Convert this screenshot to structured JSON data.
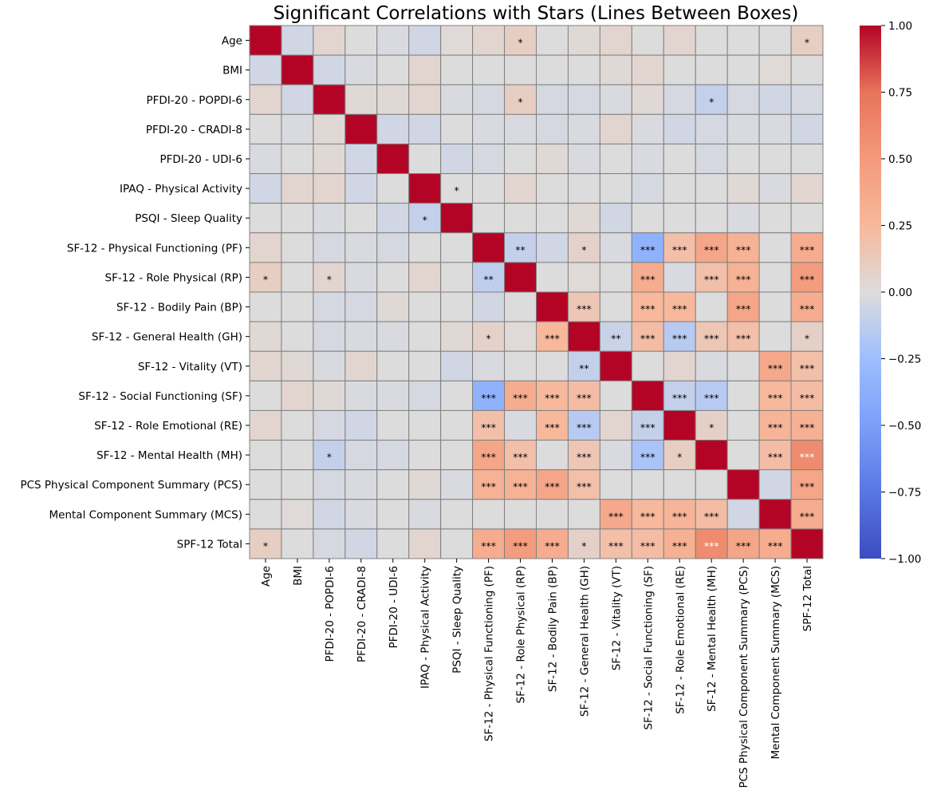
{
  "chart_data": {
    "type": "heatmap",
    "title": "Significant Correlations with Stars (Lines Between Boxes)",
    "labels": [
      "Age",
      "BMI",
      "PFDI-20 - POPDI-6",
      "PFDI-20 - CRADI-8",
      "PFDI-20 - UDI-6",
      "IPAQ - Physical Activity",
      "PSQI - Sleep Quality",
      "SF-12 - Physical Functioning (PF)",
      "SF-12 - Role Physical (RP)",
      "SF-12 - Bodily Pain (BP)",
      "SF-12 - General Health (GH)",
      "SF-12 - Vitality (VT)",
      "SF-12 - Social Functioning (SF)",
      "SF-12 - Role Emotional (RE)",
      "SF-12 - Mental Health (MH)",
      "PCS Physical Component Summary (PCS)",
      "Mental Component Summary (MCS)",
      "SPF-12 Total"
    ],
    "values": [
      [
        1.0,
        -0.05,
        0.05,
        0.0,
        -0.02,
        -0.05,
        0.02,
        0.05,
        0.1,
        0.0,
        0.03,
        0.05,
        0.0,
        0.05,
        0.0,
        0.0,
        0.0,
        0.1
      ],
      [
        -0.05,
        1.0,
        -0.05,
        -0.02,
        0.0,
        0.05,
        0.0,
        0.0,
        0.0,
        0.0,
        0.0,
        0.03,
        0.05,
        0.0,
        0.0,
        0.0,
        0.02,
        0.0
      ],
      [
        0.05,
        -0.05,
        1.0,
        0.03,
        0.03,
        0.05,
        -0.02,
        -0.03,
        0.1,
        -0.03,
        -0.03,
        -0.02,
        0.03,
        -0.03,
        -0.1,
        -0.03,
        -0.05,
        -0.03
      ],
      [
        0.0,
        -0.02,
        0.03,
        1.0,
        -0.05,
        -0.05,
        0.0,
        -0.02,
        -0.02,
        -0.03,
        -0.02,
        0.05,
        -0.02,
        -0.05,
        -0.03,
        -0.02,
        -0.02,
        -0.05
      ],
      [
        -0.02,
        0.0,
        0.03,
        -0.05,
        1.0,
        0.0,
        -0.05,
        -0.03,
        0.0,
        0.03,
        -0.02,
        0.0,
        -0.02,
        0.0,
        -0.03,
        0.0,
        0.0,
        0.0
      ],
      [
        -0.05,
        0.05,
        0.05,
        -0.05,
        0.0,
        1.0,
        0.0,
        0.0,
        0.05,
        0.0,
        0.0,
        0.0,
        -0.03,
        0.0,
        0.0,
        0.03,
        -0.02,
        0.05
      ],
      [
        0.0,
        0.0,
        -0.02,
        0.0,
        -0.05,
        -0.1,
        1.0,
        0.0,
        0.0,
        0.0,
        0.03,
        -0.05,
        0.0,
        0.0,
        0.0,
        -0.02,
        0.0,
        0.0
      ],
      [
        0.05,
        0.0,
        -0.03,
        -0.02,
        -0.03,
        0.0,
        0.0,
        1.0,
        -0.1,
        -0.05,
        0.07,
        -0.02,
        -0.35,
        0.2,
        0.4,
        0.3,
        0.0,
        0.35
      ],
      [
        0.1,
        0.0,
        0.05,
        -0.02,
        0.0,
        0.05,
        0.0,
        -0.12,
        1.0,
        0.0,
        0.02,
        0.0,
        0.35,
        -0.02,
        0.2,
        0.3,
        0.0,
        0.48
      ],
      [
        0.0,
        0.0,
        -0.03,
        -0.03,
        0.03,
        0.0,
        0.0,
        -0.05,
        0.0,
        1.0,
        0.15,
        0.0,
        0.25,
        0.25,
        0.0,
        0.4,
        0.0,
        0.35
      ],
      [
        0.03,
        0.0,
        -0.03,
        -0.02,
        -0.02,
        0.0,
        0.03,
        0.07,
        0.02,
        0.25,
        1.0,
        -0.08,
        0.22,
        -0.15,
        0.15,
        0.2,
        0.0,
        0.08
      ],
      [
        0.05,
        0.03,
        -0.02,
        0.05,
        0.0,
        0.0,
        -0.05,
        -0.02,
        0.0,
        0.0,
        -0.1,
        1.0,
        0.0,
        0.05,
        -0.02,
        0.0,
        0.38,
        0.2
      ],
      [
        0.0,
        0.05,
        0.03,
        -0.02,
        -0.02,
        -0.03,
        0.0,
        -0.35,
        0.35,
        0.25,
        0.22,
        0.0,
        1.0,
        -0.1,
        -0.15,
        0.0,
        0.25,
        0.22
      ],
      [
        0.05,
        0.0,
        -0.03,
        -0.05,
        0.0,
        0.0,
        0.0,
        0.2,
        -0.02,
        0.25,
        -0.15,
        0.05,
        -0.1,
        1.0,
        0.08,
        0.0,
        0.28,
        0.32
      ],
      [
        0.0,
        0.0,
        -0.1,
        -0.03,
        -0.03,
        0.0,
        0.0,
        0.4,
        0.2,
        0.0,
        0.15,
        -0.02,
        -0.2,
        0.1,
        1.0,
        0.0,
        0.22,
        0.6
      ],
      [
        0.0,
        0.0,
        -0.03,
        -0.02,
        0.0,
        0.03,
        -0.02,
        0.3,
        0.3,
        0.4,
        0.2,
        0.0,
        0.0,
        0.0,
        0.0,
        1.0,
        -0.05,
        0.4
      ],
      [
        0.0,
        0.02,
        -0.05,
        -0.02,
        0.0,
        -0.02,
        0.0,
        0.0,
        0.0,
        0.0,
        0.0,
        0.38,
        0.25,
        0.28,
        0.22,
        -0.05,
        1.0,
        0.35
      ],
      [
        0.1,
        0.0,
        -0.03,
        -0.05,
        0.0,
        0.05,
        0.0,
        0.35,
        0.48,
        0.35,
        0.08,
        0.2,
        0.22,
        0.32,
        0.6,
        0.4,
        0.35,
        1.0
      ]
    ],
    "stars": [
      [
        "",
        "",
        "",
        "",
        "",
        "",
        "",
        "",
        "*",
        "",
        "",
        "",
        "",
        "",
        "",
        "",
        "",
        "*"
      ],
      [
        "",
        "",
        "",
        "",
        "",
        "",
        "",
        "",
        "",
        "",
        "",
        "",
        "",
        "",
        "",
        "",
        "",
        ""
      ],
      [
        "",
        "",
        "",
        "",
        "",
        "",
        "",
        "",
        "*",
        "",
        "",
        "",
        "",
        "",
        "*",
        "",
        "",
        ""
      ],
      [
        "",
        "",
        "",
        "",
        "",
        "",
        "",
        "",
        "",
        "",
        "",
        "",
        "",
        "",
        "",
        "",
        "",
        ""
      ],
      [
        "",
        "",
        "",
        "",
        "",
        "",
        "",
        "",
        "",
        "",
        "",
        "",
        "",
        "",
        "",
        "",
        "",
        ""
      ],
      [
        "",
        "",
        "",
        "",
        "",
        "",
        "*",
        "",
        "",
        "",
        "",
        "",
        "",
        "",
        "",
        "",
        "",
        ""
      ],
      [
        "",
        "",
        "",
        "",
        "",
        "*",
        "",
        "",
        "",
        "",
        "",
        "",
        "",
        "",
        "",
        "",
        "",
        ""
      ],
      [
        "",
        "",
        "",
        "",
        "",
        "",
        "",
        "",
        "**",
        "",
        "*",
        "",
        "***",
        "***",
        "***",
        "***",
        "",
        "***"
      ],
      [
        "*",
        "",
        "*",
        "",
        "",
        "",
        "",
        "**",
        "",
        "",
        "",
        "",
        "***",
        "",
        "***",
        "***",
        "",
        "***"
      ],
      [
        "",
        "",
        "",
        "",
        "",
        "",
        "",
        "",
        "",
        "",
        "***",
        "",
        "***",
        "***",
        "",
        "***",
        "",
        "***"
      ],
      [
        "",
        "",
        "",
        "",
        "",
        "",
        "",
        "*",
        "",
        "***",
        "",
        "**",
        "***",
        "***",
        "***",
        "***",
        "",
        "*"
      ],
      [
        "",
        "",
        "",
        "",
        "",
        "",
        "",
        "",
        "",
        "",
        "**",
        "",
        "",
        "",
        "",
        "",
        "***",
        "***"
      ],
      [
        "",
        "",
        "",
        "",
        "",
        "",
        "",
        "***",
        "***",
        "***",
        "***",
        "",
        "",
        "***",
        "***",
        "",
        "***",
        "***"
      ],
      [
        "",
        "",
        "",
        "",
        "",
        "",
        "",
        "***",
        "",
        "***",
        "***",
        "",
        "***",
        "",
        "*",
        "",
        "***",
        "***"
      ],
      [
        "",
        "",
        "*",
        "",
        "",
        "",
        "",
        "***",
        "***",
        "",
        "***",
        "",
        "***",
        "*",
        "",
        "",
        "***",
        "***"
      ],
      [
        "",
        "",
        "",
        "",
        "",
        "",
        "",
        "***",
        "***",
        "***",
        "***",
        "",
        "",
        "",
        "",
        "",
        "",
        "***"
      ],
      [
        "",
        "",
        "",
        "",
        "",
        "",
        "",
        "",
        "",
        "",
        "",
        "***",
        "***",
        "***",
        "***",
        "",
        "",
        "***"
      ],
      [
        "*",
        "",
        "",
        "",
        "",
        "",
        "",
        "***",
        "***",
        "***",
        "*",
        "***",
        "***",
        "***",
        "***",
        "***",
        "***",
        ""
      ]
    ],
    "vmin": -1.0,
    "vmax": 1.0,
    "colormap": "coolwarm",
    "colorbar_ticks": [
      "1.00",
      "0.75",
      "0.50",
      "0.25",
      "0.00",
      "−0.25",
      "−0.50",
      "−0.75",
      "−1.00"
    ],
    "colorbar_tick_values": [
      1.0,
      0.75,
      0.5,
      0.25,
      0.0,
      -0.25,
      -0.5,
      -0.75,
      -1.0
    ],
    "grid_line_color": "#808080"
  }
}
